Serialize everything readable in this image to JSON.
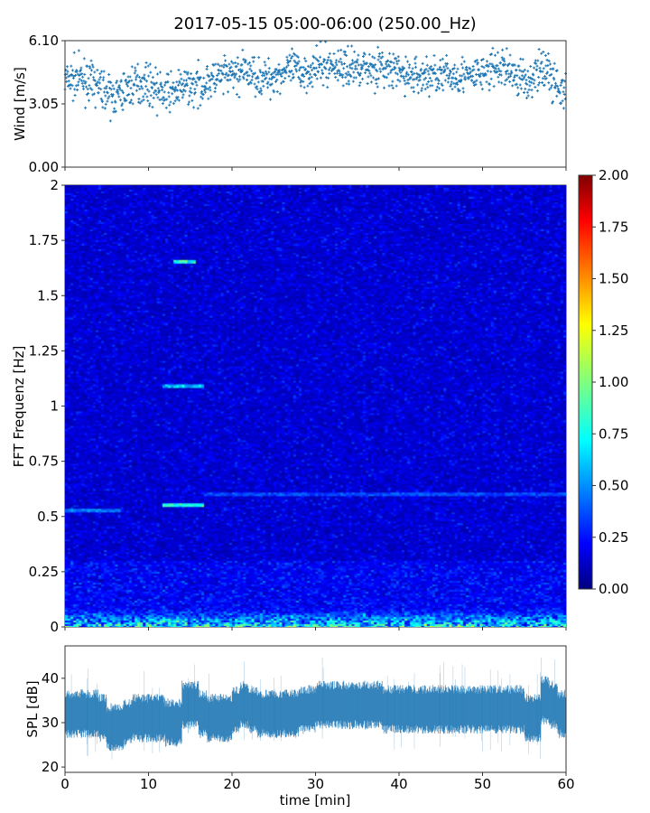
{
  "chart_data": [
    {
      "type": "scatter",
      "title": "2017-05-15 05:00-06:00 (250.00_Hz)",
      "ylabel": "Wind [m/s]",
      "xlim": [
        0,
        60
      ],
      "ylim": [
        0,
        6.1
      ],
      "yticks": [
        "0.00",
        "3.05",
        "6.10"
      ],
      "marker": "+",
      "color": "#1f77b4",
      "minute_mean_wind": [
        4.2,
        4.3,
        4.2,
        4.0,
        3.8,
        3.4,
        3.5,
        3.8,
        4.0,
        4.1,
        3.9,
        3.6,
        3.6,
        3.7,
        3.9,
        3.9,
        4.0,
        4.2,
        4.3,
        4.4,
        4.5,
        4.6,
        4.5,
        4.3,
        4.3,
        4.5,
        4.6,
        4.7,
        4.6,
        4.7,
        4.8,
        4.9,
        4.9,
        4.8,
        4.8,
        4.9,
        4.8,
        4.8,
        4.7,
        4.6,
        4.5,
        4.4,
        4.4,
        4.4,
        4.5,
        4.4,
        4.4,
        4.5,
        4.3,
        4.5,
        4.6,
        4.7,
        4.8,
        4.6,
        4.3,
        4.2,
        4.5,
        4.8,
        4.2,
        3.6
      ]
    },
    {
      "type": "heatmap",
      "ylabel": "FFT Frequenz [Hz]",
      "xlim": [
        0,
        60
      ],
      "ylim": [
        0,
        2
      ],
      "yticks": [
        "0",
        "0.25",
        "0.5",
        "0.75",
        "1",
        "1.25",
        "1.5",
        "1.75",
        "2"
      ],
      "colormap": "jet",
      "colorbar": {
        "range": [
          0,
          2
        ],
        "ticks": [
          "0.00",
          "0.25",
          "0.50",
          "0.75",
          "1.00",
          "1.25",
          "1.50",
          "1.75",
          "2.00"
        ]
      },
      "background_level": 0.2,
      "features": [
        {
          "freq": 1.65,
          "t_start": 12.8,
          "t_end": 15.6,
          "value": 1.0
        },
        {
          "freq": 1.09,
          "t_start": 11.5,
          "t_end": 16.6,
          "value": 0.8
        },
        {
          "freq": 0.53,
          "t_start": 0,
          "t_end": 6.5,
          "value": 0.6
        },
        {
          "freq": 0.55,
          "t_start": 11.5,
          "t_end": 16.6,
          "value": 1.0
        },
        {
          "freq": 0.6,
          "t_start": 16.6,
          "t_end": 60,
          "value": 0.5
        },
        {
          "freq": 0.03,
          "t_start": 0,
          "t_end": 60,
          "value": 0.9
        }
      ]
    },
    {
      "type": "line",
      "ylabel": "SPL [dB]",
      "xlabel": "time [min]",
      "xlim": [
        0,
        60
      ],
      "ylim": [
        18.8,
        47.3
      ],
      "yticks": [
        "20",
        "30",
        "40"
      ],
      "xticks": [
        "0",
        "10",
        "20",
        "30",
        "40",
        "50",
        "60"
      ],
      "color": "#1f77b4",
      "minute_mean_spl": [
        32,
        32,
        32,
        32,
        31,
        29,
        29,
        30,
        31,
        31,
        31,
        31,
        30,
        30,
        34,
        34,
        32,
        31,
        31,
        31,
        33,
        34,
        33,
        32,
        32,
        32,
        32,
        32,
        33,
        33,
        34,
        34,
        34,
        34,
        34,
        34,
        34,
        34,
        33,
        33,
        33,
        33,
        33,
        33,
        33,
        33,
        33,
        33,
        33,
        33,
        33,
        33,
        33,
        33,
        33,
        31,
        31,
        35,
        34,
        32
      ]
    }
  ]
}
